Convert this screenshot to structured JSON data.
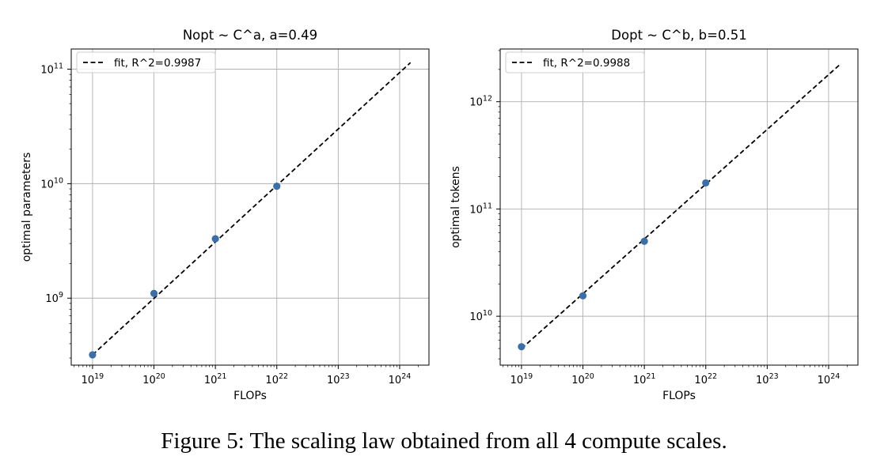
{
  "caption": "Figure 5: The scaling law obtained from all 4 compute scales.",
  "chart_data": [
    {
      "type": "scatter",
      "title": "Nopt ~ C^a, a=0.49",
      "xlabel": "FLOPs",
      "ylabel": "optimal parameters",
      "xscale": "log",
      "yscale": "log",
      "xlim": [
        4.5e+18,
        3e+24
      ],
      "ylim": [
        260000000.0,
        150000000000.0
      ],
      "xticks": [
        1e+19,
        1e+20,
        1e+21,
        1e+22,
        1e+23,
        1e+24
      ],
      "xtick_labels": [
        {
          "base": "10",
          "exp": "19"
        },
        {
          "base": "10",
          "exp": "20"
        },
        {
          "base": "10",
          "exp": "21"
        },
        {
          "base": "10",
          "exp": "22"
        },
        {
          "base": "10",
          "exp": "23"
        },
        {
          "base": "10",
          "exp": "24"
        }
      ],
      "yticks": [
        1000000000.0,
        10000000000.0,
        100000000000.0
      ],
      "ytick_labels": [
        {
          "base": "10",
          "exp": "9"
        },
        {
          "base": "10",
          "exp": "10"
        },
        {
          "base": "10",
          "exp": "11"
        }
      ],
      "grid": true,
      "points": {
        "color": "#3a6fa8",
        "x": [
          1e+19,
          1e+20,
          1e+21,
          1e+22
        ],
        "y": [
          320000000.0,
          1100000000.0,
          3300000000.0,
          9500000000.0
        ]
      },
      "fit": {
        "label": "fit, R^2=0.9987",
        "color": "#000000",
        "x": [
          1e+19,
          1.5e+24
        ],
        "y": [
          320000000.0,
          114000000000.0
        ]
      },
      "legend_loc": "upper-left"
    },
    {
      "type": "scatter",
      "title": "Dopt ~ C^b, b=0.51",
      "xlabel": "FLOPs",
      "ylabel": "optimal tokens",
      "xscale": "log",
      "yscale": "log",
      "xlim": [
        4.5e+18,
        3e+24
      ],
      "ylim": [
        3500000000.0,
        3100000000000.0
      ],
      "xticks": [
        1e+19,
        1e+20,
        1e+21,
        1e+22,
        1e+23,
        1e+24
      ],
      "xtick_labels": [
        {
          "base": "10",
          "exp": "19"
        },
        {
          "base": "10",
          "exp": "20"
        },
        {
          "base": "10",
          "exp": "21"
        },
        {
          "base": "10",
          "exp": "22"
        },
        {
          "base": "10",
          "exp": "23"
        },
        {
          "base": "10",
          "exp": "24"
        }
      ],
      "yticks": [
        10000000000.0,
        100000000000.0,
        1000000000000.0
      ],
      "ytick_labels": [
        {
          "base": "10",
          "exp": "10"
        },
        {
          "base": "10",
          "exp": "11"
        },
        {
          "base": "10",
          "exp": "12"
        }
      ],
      "grid": true,
      "points": {
        "color": "#3a6fa8",
        "x": [
          1e+19,
          1e+20,
          1e+21,
          1e+22
        ],
        "y": [
          5200000000.0,
          15500000000.0,
          50000000000.0,
          175000000000.0
        ]
      },
      "fit": {
        "label": "fit, R^2=0.9988",
        "color": "#000000",
        "x": [
          1e+19,
          1.5e+24
        ],
        "y": [
          5000000000.0,
          2200000000000.0
        ]
      },
      "legend_loc": "upper-left"
    }
  ]
}
